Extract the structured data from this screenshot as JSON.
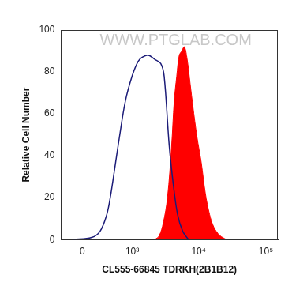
{
  "chart_data": {
    "type": "line",
    "x_label": "CL555-66845 TDRKH(2B1B12)",
    "y_label": "Relative Cell Number",
    "annotations": [
      "WWW.PTGLAB.COM"
    ],
    "xlim": [
      -300,
      150000
    ],
    "xticks": [
      0,
      {
        "value": 1000,
        "label": "10³"
      },
      {
        "value": 10000,
        "label": "10⁴"
      },
      {
        "value": 100000,
        "label": "10⁵"
      }
    ],
    "ylim": [
      0,
      100
    ],
    "yticks": [
      0,
      20,
      40,
      60,
      80,
      100
    ],
    "grid": false,
    "series": [
      {
        "type": "line",
        "color": "#1c1c78",
        "x": [
          -121,
          121,
          242,
          352,
          415,
          500,
          615,
          774,
          995,
          1233,
          1432,
          1760,
          2224,
          2729,
          3069,
          3650,
          4214,
          4867,
          5795,
          7090
        ],
        "values": [
          0,
          1,
          4,
          12,
          20,
          33,
          49,
          66,
          78,
          85,
          87,
          88,
          86,
          84,
          78,
          45,
          26,
          12,
          4,
          0
        ]
      },
      {
        "type": "area",
        "color": "#ff0000",
        "x": [
          2224,
          2575,
          2979,
          3442,
          3970,
          4338,
          4728,
          5160,
          5628,
          6135,
          6690,
          7510,
          8190,
          9450,
          10920,
          12600,
          14550,
          16800,
          20560,
          25900
        ],
        "values": [
          0,
          1.7,
          8,
          20,
          45,
          66,
          78,
          88,
          90,
          92,
          87,
          74,
          64,
          49,
          37,
          22,
          12,
          6,
          2,
          0
        ]
      }
    ]
  }
}
